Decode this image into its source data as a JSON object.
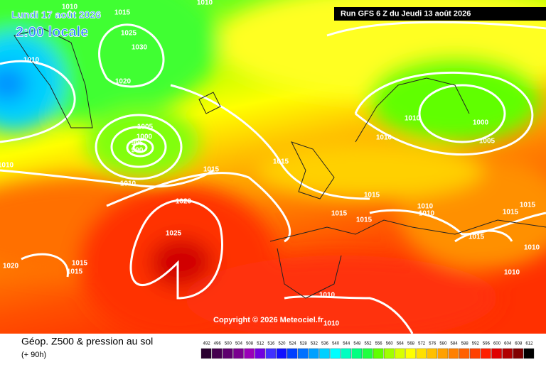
{
  "header": {
    "date": "Lundi 17 août 2026",
    "time": "2:00 locale",
    "run": "Run GFS 6 Z du Jeudi 13 août 2026"
  },
  "copyright": "Copyright © 2026 Meteociel.fr",
  "footer": {
    "title": "Géop. Z500 & pression au sol",
    "lead": "(+ 90h)"
  },
  "isobar_labels": [
    "1010",
    "1015",
    "1010",
    "1025",
    "1030",
    "1010",
    "1020",
    "1005",
    "1000",
    "995",
    "990",
    "1010",
    "1010",
    "1015",
    "1015",
    "1020",
    "1025",
    "1010",
    "1010",
    "1000",
    "1005",
    "1015",
    "1015",
    "1015",
    "1010",
    "1010",
    "1015",
    "1015",
    "1015",
    "1010",
    "1010",
    "1020",
    "1015",
    "1015",
    "1010",
    "1010"
  ],
  "legend": {
    "ticks": [
      492,
      496,
      500,
      504,
      508,
      512,
      516,
      520,
      524,
      528,
      532,
      536,
      540,
      544,
      548,
      552,
      556,
      560,
      564,
      568,
      572,
      576,
      580,
      584,
      588,
      592,
      596,
      600,
      604,
      608,
      612
    ],
    "colors": [
      "#2a0030",
      "#45004f",
      "#5e006e",
      "#7a008f",
      "#9a00b8",
      "#7000e0",
      "#4030ff",
      "#1010ff",
      "#0040ff",
      "#0070ff",
      "#00a0ff",
      "#00d0ff",
      "#00ffff",
      "#00ffc0",
      "#00ff80",
      "#20ff40",
      "#60ff00",
      "#a0ff00",
      "#d8ff00",
      "#ffff00",
      "#ffe000",
      "#ffc000",
      "#ffa000",
      "#ff8000",
      "#ff6000",
      "#ff4000",
      "#ff2000",
      "#e00000",
      "#b00000",
      "#800000",
      "#000000"
    ]
  }
}
